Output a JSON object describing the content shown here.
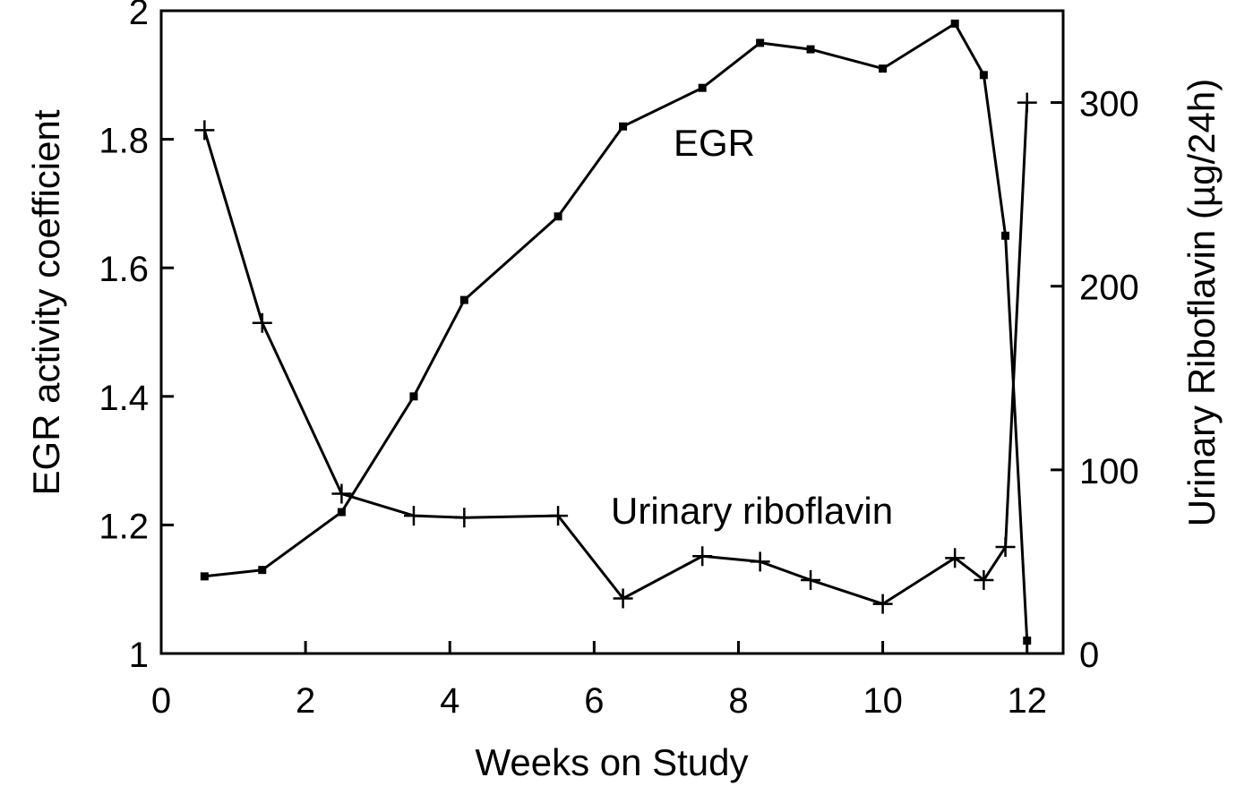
{
  "chart_data": {
    "type": "line",
    "title": "",
    "xlabel": "Weeks on Study",
    "ylabel": "EGR activity coefficient",
    "y2label": "Urinary Riboflavin (µg/24h)",
    "xlim": [
      0,
      12.5
    ],
    "ylim": [
      1,
      2
    ],
    "y2lim": [
      0,
      350
    ],
    "x_ticks": [
      "0",
      "2",
      "4",
      "6",
      "8",
      "10",
      "12"
    ],
    "y_ticks": [
      "1",
      "1.2",
      "1.4",
      "1.6",
      "1.8",
      "2"
    ],
    "y2_ticks": [
      "0",
      "100",
      "200",
      "300"
    ],
    "grid": false,
    "legend": "inline labels",
    "series": [
      {
        "name": "EGR",
        "axis": "left",
        "marker": "square",
        "x": [
          0.6,
          1.4,
          2.5,
          3.5,
          4.2,
          5.5,
          6.4,
          7.5,
          8.3,
          9.0,
          10.0,
          11.0,
          11.4,
          11.7,
          12.0
        ],
        "y": [
          1.12,
          1.13,
          1.22,
          1.4,
          1.55,
          1.68,
          1.82,
          1.88,
          1.95,
          1.94,
          1.91,
          1.98,
          1.9,
          1.65,
          1.02
        ]
      },
      {
        "name": "Urinary riboflavin",
        "axis": "right",
        "marker": "plus",
        "x": [
          0.6,
          1.4,
          2.5,
          3.5,
          4.2,
          5.5,
          6.4,
          7.5,
          8.3,
          9.0,
          10.0,
          11.0,
          11.4,
          11.7,
          12.0
        ],
        "y": [
          285,
          180,
          87,
          75,
          74,
          75,
          30,
          53,
          50,
          40,
          27,
          52,
          40,
          58,
          300
        ]
      }
    ]
  }
}
